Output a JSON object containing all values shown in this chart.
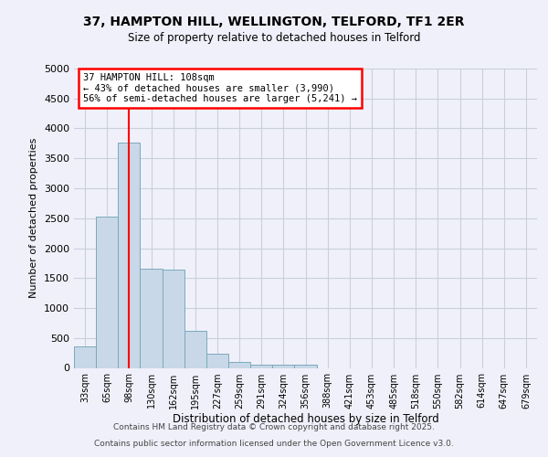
{
  "title_line1": "37, HAMPTON HILL, WELLINGTON, TELFORD, TF1 2ER",
  "title_line2": "Size of property relative to detached houses in Telford",
  "xlabel": "Distribution of detached houses by size in Telford",
  "ylabel": "Number of detached properties",
  "categories": [
    "33sqm",
    "65sqm",
    "98sqm",
    "130sqm",
    "162sqm",
    "195sqm",
    "227sqm",
    "259sqm",
    "291sqm",
    "324sqm",
    "356sqm",
    "388sqm",
    "421sqm",
    "453sqm",
    "485sqm",
    "518sqm",
    "550sqm",
    "582sqm",
    "614sqm",
    "647sqm",
    "679sqm"
  ],
  "values": [
    355,
    2530,
    3760,
    1650,
    1640,
    620,
    240,
    100,
    55,
    55,
    50,
    0,
    0,
    0,
    0,
    0,
    0,
    0,
    0,
    0,
    0
  ],
  "bar_color": "#c8d8e8",
  "bar_edge_color": "#7aaabb",
  "grid_color": "#c8d0dc",
  "vline_x": 2.0,
  "vline_color": "red",
  "annotation_title": "37 HAMPTON HILL: 108sqm",
  "annotation_line1": "← 43% of detached houses are smaller (3,990)",
  "annotation_line2": "56% of semi-detached houses are larger (5,241) →",
  "annotation_box_color": "white",
  "annotation_box_edge": "red",
  "ylim": [
    0,
    5000
  ],
  "yticks": [
    0,
    500,
    1000,
    1500,
    2000,
    2500,
    3000,
    3500,
    4000,
    4500,
    5000
  ],
  "footer_line1": "Contains HM Land Registry data © Crown copyright and database right 2025.",
  "footer_line2": "Contains public sector information licensed under the Open Government Licence v3.0.",
  "background_color": "#f0f0fa"
}
